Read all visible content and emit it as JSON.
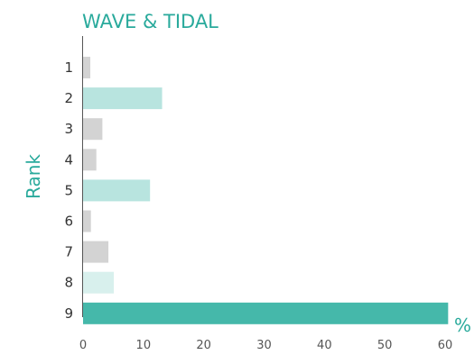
{
  "chart_data": {
    "type": "bar",
    "orientation": "horizontal",
    "title": "WAVE & TIDAL",
    "ylabel": "Rank",
    "xlabel": "%",
    "categories": [
      "1",
      "2",
      "3",
      "4",
      "5",
      "6",
      "7",
      "8",
      "9"
    ],
    "values": [
      1.2,
      13.1,
      3.2,
      2.2,
      11.1,
      1.3,
      4.2,
      5.1,
      60.5
    ],
    "bar_colors": [
      "#d3d3d3",
      "#b8e4df",
      "#d3d3d3",
      "#d3d3d3",
      "#b8e4df",
      "#d3d3d3",
      "#d3d3d3",
      "#d8f0ed",
      "#45b8aa"
    ],
    "xlim": [
      0,
      60
    ],
    "xticks": [
      "0",
      "10",
      "20",
      "30",
      "40",
      "50",
      "60"
    ],
    "grid": false
  },
  "colors": {
    "accent": "#2aaa9c",
    "axis": "#555555"
  }
}
